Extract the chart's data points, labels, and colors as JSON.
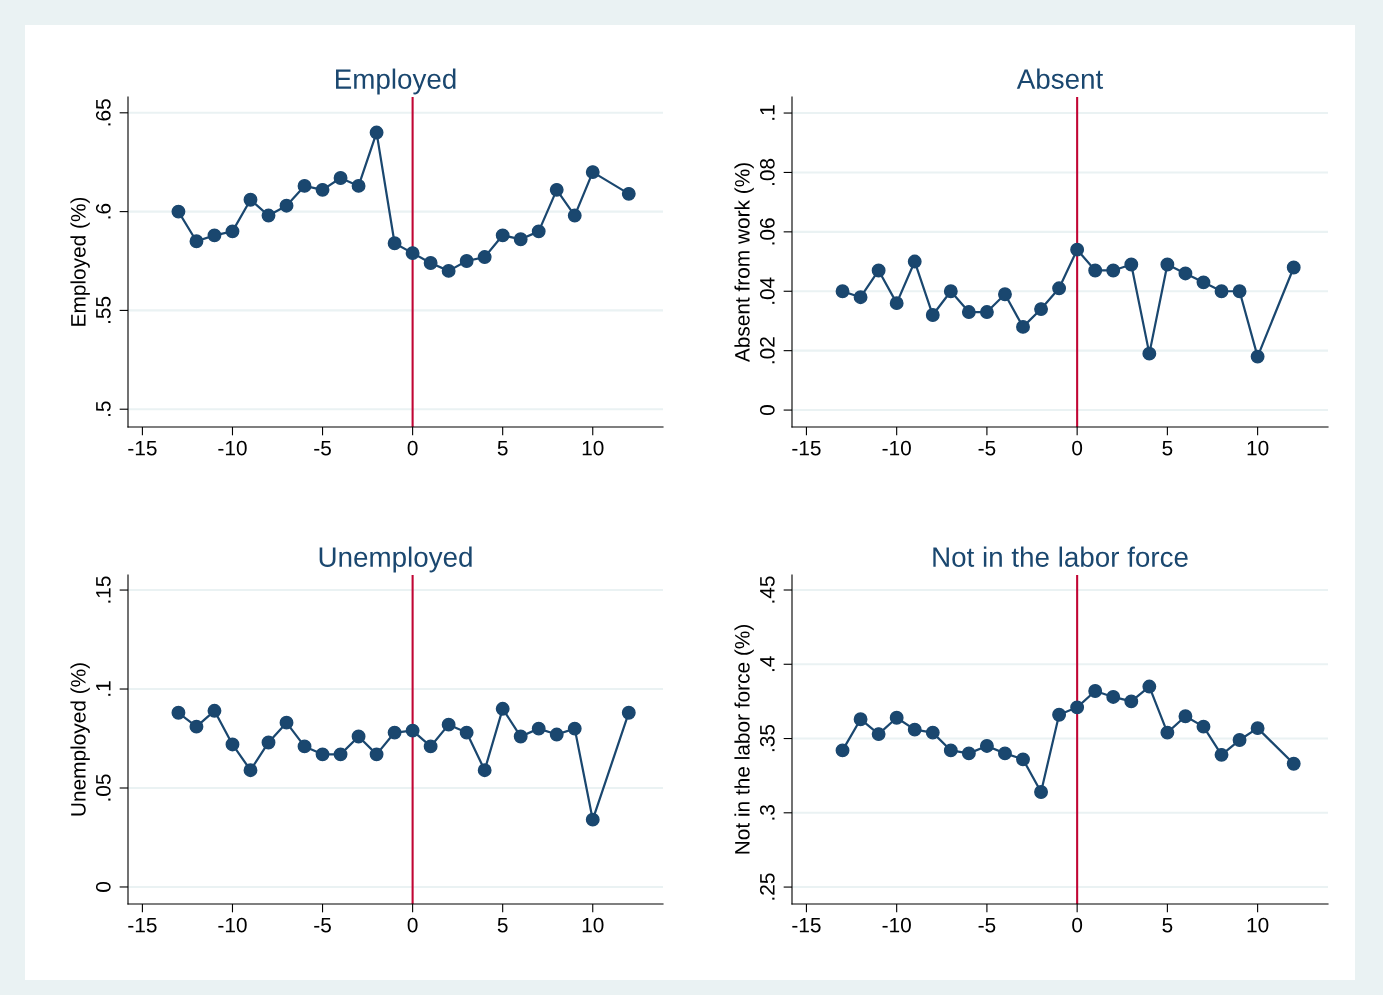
{
  "chart_data": [
    {
      "type": "line",
      "title": "Employed",
      "ylabel": "Employed (%)",
      "x": [
        -13,
        -12,
        -11,
        -10,
        -9,
        -8,
        -7,
        -6,
        -5,
        -4,
        -3,
        -2,
        -1,
        0,
        1,
        2,
        3,
        4,
        5,
        6,
        7,
        8,
        9,
        10,
        12
      ],
      "series": [
        {
          "color": "#1a476f",
          "values": [
            0.6,
            0.585,
            0.588,
            0.59,
            0.606,
            0.598,
            0.603,
            0.613,
            0.611,
            0.617,
            0.613,
            0.64,
            0.584,
            0.579,
            0.574,
            0.57,
            0.575,
            0.577,
            0.588,
            0.586,
            0.59,
            0.611,
            0.598,
            0.62,
            0.609
          ]
        }
      ],
      "marker": "circle",
      "grid": "y",
      "legend": false,
      "xlim": [
        -15.8,
        13.9
      ],
      "xticks": [
        -15,
        -10,
        -5,
        0,
        5,
        10
      ],
      "ylim": [
        0.491,
        0.658
      ],
      "yticks": [
        {
          "value": 0.5,
          "label": ".5"
        },
        {
          "value": 0.55,
          "label": ".55"
        },
        {
          "value": 0.6,
          "label": ".6"
        },
        {
          "value": 0.65,
          "label": ".65"
        }
      ],
      "ref_lines": [
        {
          "axis": "x",
          "value": 0,
          "color": "#c10534"
        }
      ]
    },
    {
      "type": "line",
      "title": "Absent",
      "ylabel": "Absent from work (%)",
      "x": [
        -13,
        -12,
        -11,
        -10,
        -9,
        -8,
        -7,
        -6,
        -5,
        -4,
        -3,
        -2,
        -1,
        0,
        1,
        2,
        3,
        4,
        5,
        6,
        7,
        8,
        9,
        10,
        12
      ],
      "series": [
        {
          "color": "#1a476f",
          "values": [
            0.04,
            0.038,
            0.047,
            0.036,
            0.05,
            0.032,
            0.04,
            0.033,
            0.033,
            0.039,
            0.028,
            0.034,
            0.041,
            0.054,
            0.047,
            0.047,
            0.049,
            0.019,
            0.049,
            0.046,
            0.043,
            0.04,
            0.04,
            0.018,
            0.048
          ]
        }
      ],
      "marker": "circle",
      "grid": "y",
      "legend": false,
      "xlim": [
        -15.8,
        13.9
      ],
      "xticks": [
        -15,
        -10,
        -5,
        0,
        5,
        10
      ],
      "ylim": [
        -0.0057,
        0.1054
      ],
      "yticks": [
        0,
        {
          "value": 0.02,
          "label": ".02"
        },
        {
          "value": 0.04,
          "label": ".04"
        },
        {
          "value": 0.06,
          "label": ".06"
        },
        {
          "value": 0.08,
          "label": ".08"
        },
        {
          "value": 0.1,
          "label": ".1"
        }
      ],
      "ref_lines": [
        {
          "axis": "x",
          "value": 0,
          "color": "#c10534"
        }
      ]
    },
    {
      "type": "line",
      "title": "Unemployed",
      "ylabel": "Unemployed (%)",
      "x": [
        -13,
        -12,
        -11,
        -10,
        -9,
        -8,
        -7,
        -6,
        -5,
        -4,
        -3,
        -2,
        -1,
        0,
        1,
        2,
        3,
        4,
        5,
        6,
        7,
        8,
        9,
        10,
        12
      ],
      "series": [
        {
          "color": "#1a476f",
          "values": [
            0.088,
            0.081,
            0.089,
            0.072,
            0.059,
            0.073,
            0.083,
            0.071,
            0.067,
            0.067,
            0.076,
            0.067,
            0.078,
            0.079,
            0.071,
            0.082,
            0.078,
            0.059,
            0.09,
            0.076,
            0.08,
            0.077,
            0.08,
            0.034,
            0.088
          ]
        }
      ],
      "marker": "circle",
      "grid": "y",
      "legend": false,
      "xlim": [
        -15.8,
        13.9
      ],
      "xticks": [
        -15,
        -10,
        -5,
        0,
        5,
        10
      ],
      "ylim": [
        -0.0086,
        0.1576
      ],
      "yticks": [
        0,
        {
          "value": 0.05,
          "label": ".05"
        },
        {
          "value": 0.1,
          "label": ".1"
        },
        {
          "value": 0.15,
          "label": ".15"
        }
      ],
      "ref_lines": [
        {
          "axis": "x",
          "value": 0,
          "color": "#c10534"
        }
      ]
    },
    {
      "type": "line",
      "title": "Not in the labor force",
      "ylabel": "Not in the labor force (%)",
      "x": [
        -13,
        -12,
        -11,
        -10,
        -9,
        -8,
        -7,
        -6,
        -5,
        -4,
        -3,
        -2,
        -1,
        0,
        1,
        2,
        3,
        4,
        5,
        6,
        7,
        8,
        9,
        10,
        12
      ],
      "series": [
        {
          "color": "#1a476f",
          "values": [
            0.342,
            0.363,
            0.353,
            0.364,
            0.356,
            0.354,
            0.342,
            0.34,
            0.345,
            0.34,
            0.336,
            0.314,
            0.366,
            0.371,
            0.382,
            0.378,
            0.375,
            0.385,
            0.354,
            0.365,
            0.358,
            0.339,
            0.349,
            0.357,
            0.333
          ]
        }
      ],
      "marker": "circle",
      "grid": "y",
      "legend": false,
      "xlim": [
        -15.8,
        13.9
      ],
      "xticks": [
        -15,
        -10,
        -5,
        0,
        5,
        10
      ],
      "ylim": [
        0.2386,
        0.4601
      ],
      "yticks": [
        {
          "value": 0.25,
          "label": ".25"
        },
        {
          "value": 0.3,
          "label": ".3"
        },
        {
          "value": 0.35,
          "label": ".35"
        },
        {
          "value": 0.4,
          "label": ".4"
        },
        {
          "value": 0.45,
          "label": ".45"
        }
      ],
      "ref_lines": [
        {
          "axis": "x",
          "value": 0,
          "color": "#c10534"
        }
      ]
    }
  ]
}
